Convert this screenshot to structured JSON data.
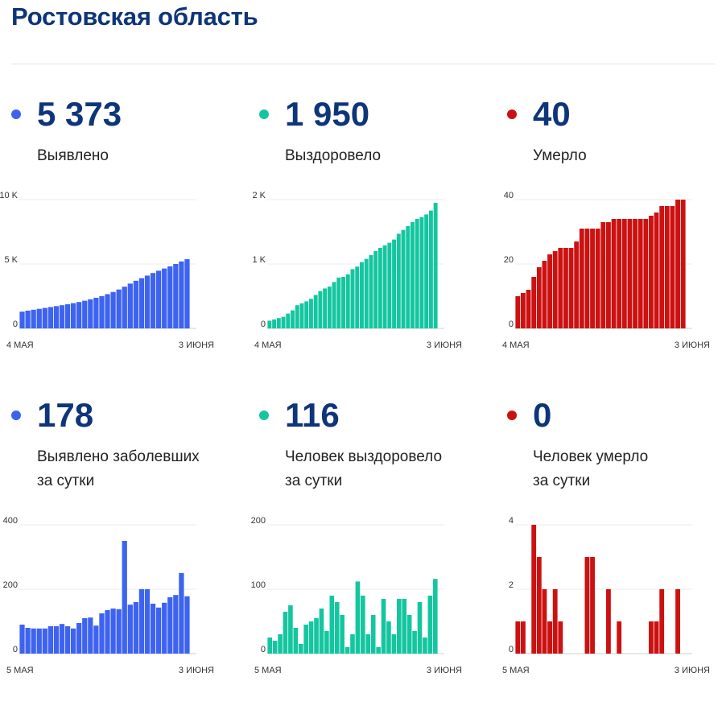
{
  "page": {
    "title": "Ростовская область"
  },
  "colors": {
    "blue": "#3d63f0",
    "green": "#14c6a0",
    "red": "#cc1111",
    "title": "#0e3579"
  },
  "panels": [
    {
      "value": "5 373",
      "label1": "Выявлено",
      "label2": "",
      "color": "blue"
    },
    {
      "value": "1 950",
      "label1": "Выздоровело",
      "label2": "",
      "color": "green"
    },
    {
      "value": "40",
      "label1": "Умерло",
      "label2": "",
      "color": "red"
    },
    {
      "value": "178",
      "label1": "Выявлено заболевших",
      "label2": "за сутки",
      "color": "blue"
    },
    {
      "value": "116",
      "label1": "Человек выздоровело",
      "label2": "за сутки",
      "color": "green"
    },
    {
      "value": "0",
      "label1": "Человек умерло",
      "label2": "за сутки",
      "color": "red"
    }
  ],
  "chart_data": [
    {
      "type": "bar",
      "title": "",
      "xlabel": "",
      "ylabel": "",
      "x_range": [
        "4 МАЯ",
        "3 ИЮНЯ"
      ],
      "x_ticks": [
        "4 МАЯ",
        "3 ИЮНЯ"
      ],
      "y_ticks": [
        "0",
        "5 K",
        "10 K"
      ],
      "ylim": [
        0,
        10000
      ],
      "grid": true,
      "values": [
        1300,
        1380,
        1450,
        1520,
        1590,
        1660,
        1730,
        1800,
        1880,
        1960,
        2050,
        2150,
        2260,
        2380,
        2510,
        2660,
        2830,
        3020,
        3240,
        3480,
        3700,
        3900,
        4100,
        4300,
        4480,
        4650,
        4820,
        5000,
        5200,
        5373
      ]
    },
    {
      "type": "bar",
      "title": "",
      "xlabel": "",
      "ylabel": "",
      "x_range": [
        "4 МАЯ",
        "3 ИЮНЯ"
      ],
      "x_ticks": [
        "4 МАЯ",
        "3 ИЮНЯ"
      ],
      "y_ticks": [
        "0",
        "1 K",
        "2 K"
      ],
      "ylim": [
        0,
        2000
      ],
      "grid": true,
      "values": [
        120,
        140,
        160,
        180,
        230,
        280,
        360,
        390,
        420,
        460,
        520,
        580,
        620,
        650,
        720,
        790,
        800,
        840,
        920,
        960,
        1030,
        1080,
        1140,
        1200,
        1250,
        1290,
        1330,
        1380,
        1470,
        1530,
        1590,
        1650,
        1700,
        1730,
        1770,
        1830,
        1950
      ]
    },
    {
      "type": "bar",
      "title": "",
      "xlabel": "",
      "ylabel": "",
      "x_range": [
        "4 МАЯ",
        "3 ИЮНЯ"
      ],
      "x_ticks": [
        "4 МАЯ",
        "3 ИЮНЯ"
      ],
      "y_ticks": [
        "0",
        "20",
        "40"
      ],
      "ylim": [
        0,
        40
      ],
      "grid": true,
      "values": [
        10,
        11,
        12,
        16,
        19,
        21,
        23,
        24,
        25,
        25,
        25,
        27,
        31,
        31,
        31,
        31,
        33,
        33,
        34,
        34,
        34,
        34,
        34,
        34,
        34,
        35,
        36,
        38,
        38,
        38,
        40,
        40
      ]
    },
    {
      "type": "bar",
      "title": "",
      "xlabel": "",
      "ylabel": "",
      "x_range": [
        "5 МАЯ",
        "3 ИЮНЯ"
      ],
      "x_ticks": [
        "5 МАЯ",
        "3 ИЮНЯ"
      ],
      "y_ticks": [
        "0",
        "200",
        "400"
      ],
      "ylim": [
        0,
        400
      ],
      "grid": true,
      "values": [
        90,
        80,
        78,
        78,
        78,
        85,
        85,
        92,
        85,
        78,
        95,
        110,
        112,
        87,
        125,
        135,
        140,
        138,
        350,
        152,
        160,
        200,
        200,
        155,
        143,
        158,
        175,
        182,
        250,
        178
      ]
    },
    {
      "type": "bar",
      "title": "",
      "xlabel": "",
      "ylabel": "",
      "x_range": [
        "5 МАЯ",
        "3 ИЮНЯ"
      ],
      "x_ticks": [
        "5 МАЯ",
        "3 ИЮНЯ"
      ],
      "y_ticks": [
        "0",
        "100",
        "200"
      ],
      "ylim": [
        0,
        200
      ],
      "grid": true,
      "values": [
        25,
        20,
        30,
        65,
        75,
        40,
        15,
        45,
        50,
        55,
        70,
        35,
        90,
        80,
        60,
        10,
        30,
        112,
        90,
        30,
        60,
        10,
        85,
        50,
        30,
        85,
        85,
        60,
        35,
        80,
        25,
        90,
        116
      ]
    },
    {
      "type": "bar",
      "title": "",
      "xlabel": "",
      "ylabel": "",
      "x_range": [
        "5 МАЯ",
        "3 ИЮНЯ"
      ],
      "x_ticks": [
        "5 МАЯ",
        "3 ИЮНЯ"
      ],
      "y_ticks": [
        "0",
        "2",
        "4"
      ],
      "ylim": [
        0,
        4
      ],
      "grid": true,
      "values": [
        1,
        1,
        0,
        4,
        3,
        2,
        1,
        2,
        1,
        0,
        0,
        0,
        0,
        3,
        3,
        0,
        0,
        2,
        0,
        1,
        0,
        0,
        0,
        0,
        0,
        1,
        1,
        2,
        0,
        0,
        2,
        0
      ]
    }
  ]
}
